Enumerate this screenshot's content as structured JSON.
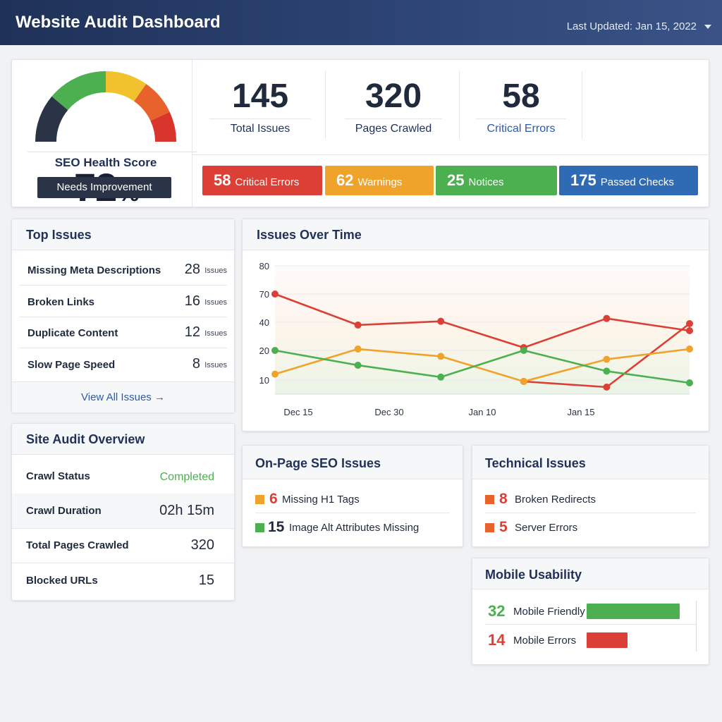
{
  "header": {
    "title": "Website Audit Dashboard",
    "last_updated": "Last Updated: Jan 15, 2022"
  },
  "score": {
    "value": "72",
    "unit": "%",
    "percent": 72,
    "label": "SEO Health Score",
    "badge": "Needs Improvement"
  },
  "stats": [
    {
      "value": "145",
      "label": "Total Issues"
    },
    {
      "value": "320",
      "label": "Pages Crawled"
    },
    {
      "value": "58",
      "label": "Critical Errors"
    }
  ],
  "pills": [
    {
      "count": "58",
      "label": "Critical Errors",
      "color": "#dc3f35"
    },
    {
      "count": "62",
      "label": "Warnings",
      "color": "#f0a32b"
    },
    {
      "count": "25",
      "label": "Notices",
      "color": "#4caf50"
    },
    {
      "count": "175",
      "label": "Passed Checks",
      "color": "#2f6bb5"
    }
  ],
  "top_issues": {
    "title": "Top Issues",
    "items": [
      {
        "name": "Missing Meta Descriptions",
        "count": "28",
        "unit": "Issues"
      },
      {
        "name": "Broken Links",
        "count": "16",
        "unit": "Issues"
      },
      {
        "name": "Duplicate Content",
        "count": "12",
        "unit": "Issues"
      },
      {
        "name": "Slow Page Speed",
        "count": "8",
        "unit": "Issues"
      }
    ],
    "view_all": "View All Issues →"
  },
  "overview": {
    "title": "Site Audit Overview",
    "rows": [
      {
        "key": "Crawl Status",
        "value": "Completed"
      },
      {
        "key": "Crawl Duration",
        "value": "02h 15m"
      },
      {
        "key": "Total Pages Crawled",
        "value": "320"
      },
      {
        "key": "Blocked URLs",
        "value": "15"
      }
    ]
  },
  "chart_data": {
    "type": "line",
    "title": "Issues Over Time",
    "xlabel": "",
    "ylabel": "",
    "x_ticks": [
      "Dec 15",
      "Dec 30",
      "Jan 10",
      "Jan 15"
    ],
    "y_ticks": [
      "10",
      "20",
      "40",
      "70",
      "80"
    ],
    "grid": true,
    "series": [
      {
        "color": "#dc3f35",
        "points": [
          [
            0,
            70
          ],
          [
            1,
            38
          ],
          [
            2,
            41
          ],
          [
            3,
            22
          ],
          [
            4,
            44
          ],
          [
            5,
            34
          ]
        ]
      },
      {
        "color": "#dc3f35",
        "points": [
          [
            3,
            9
          ],
          [
            4,
            5
          ],
          [
            5,
            39
          ]
        ]
      },
      {
        "color": "#f0a32b",
        "points": [
          [
            0,
            12
          ],
          [
            1,
            21
          ],
          [
            2,
            18
          ],
          [
            3,
            9
          ],
          [
            4,
            17
          ],
          [
            5,
            21
          ]
        ]
      },
      {
        "color": "#4caf50",
        "points": [
          [
            0,
            20
          ],
          [
            1,
            15
          ],
          [
            2,
            11
          ],
          [
            3,
            20
          ],
          [
            4,
            13
          ],
          [
            5,
            8
          ]
        ]
      }
    ]
  },
  "onpage": {
    "title": "On-Page SEO Issues",
    "items": [
      {
        "count": "6",
        "label": "Missing H1 Tags",
        "color": "#f0a32b"
      },
      {
        "count": "15",
        "label": "Image Alt Attributes Missing",
        "color": "#4caf50"
      }
    ]
  },
  "technical": {
    "title": "Technical Issues",
    "items": [
      {
        "count": "8",
        "label": "Broken Redirects",
        "color": "#e8622c"
      },
      {
        "count": "5",
        "label": "Server Errors",
        "color": "#e8622c"
      }
    ]
  },
  "mobile": {
    "title": "Mobile Usability",
    "items": [
      {
        "count": "32",
        "label": "Mobile Friendly",
        "color": "#4caf50"
      },
      {
        "count": "14",
        "label": "Mobile Errors",
        "color": "#dc3f35"
      }
    ]
  },
  "colors": {
    "header": "#1f3158",
    "green": "#4caf50",
    "red": "#dc3f35",
    "orange": "#f0a32b",
    "blue": "#2f6bb5"
  }
}
